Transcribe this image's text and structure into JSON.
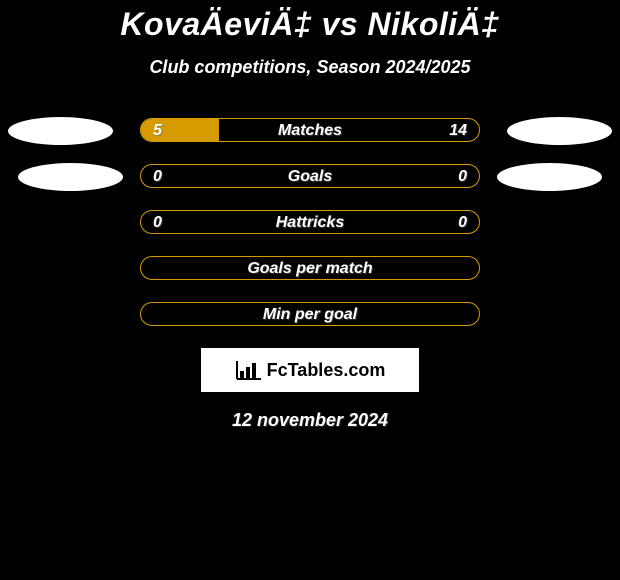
{
  "header": {
    "title": "KovaÄeviÄ‡ vs NikoliÄ‡",
    "subtitle": "Club competitions, Season 2024/2025"
  },
  "rows": [
    {
      "label": "Matches",
      "left_value": "5",
      "right_value": "14",
      "left_fill_pct": 23,
      "right_fill_pct": 0,
      "show_avatars": true,
      "avatar_variant": 1
    },
    {
      "label": "Goals",
      "left_value": "0",
      "right_value": "0",
      "left_fill_pct": 0,
      "right_fill_pct": 0,
      "show_avatars": true,
      "avatar_variant": 2
    },
    {
      "label": "Hattricks",
      "left_value": "0",
      "right_value": "0",
      "left_fill_pct": 0,
      "right_fill_pct": 0,
      "show_avatars": false
    },
    {
      "label": "Goals per match",
      "left_value": "",
      "right_value": "",
      "left_fill_pct": 0,
      "right_fill_pct": 0,
      "show_avatars": false
    },
    {
      "label": "Min per goal",
      "left_value": "",
      "right_value": "",
      "left_fill_pct": 0,
      "right_fill_pct": 0,
      "show_avatars": false
    }
  ],
  "footer": {
    "logo_text": "FcTables.com",
    "date": "12 november 2024"
  },
  "colors": {
    "background": "#000000",
    "accent": "#d59b00",
    "text": "#ffffff",
    "avatar": "#ffffff"
  }
}
